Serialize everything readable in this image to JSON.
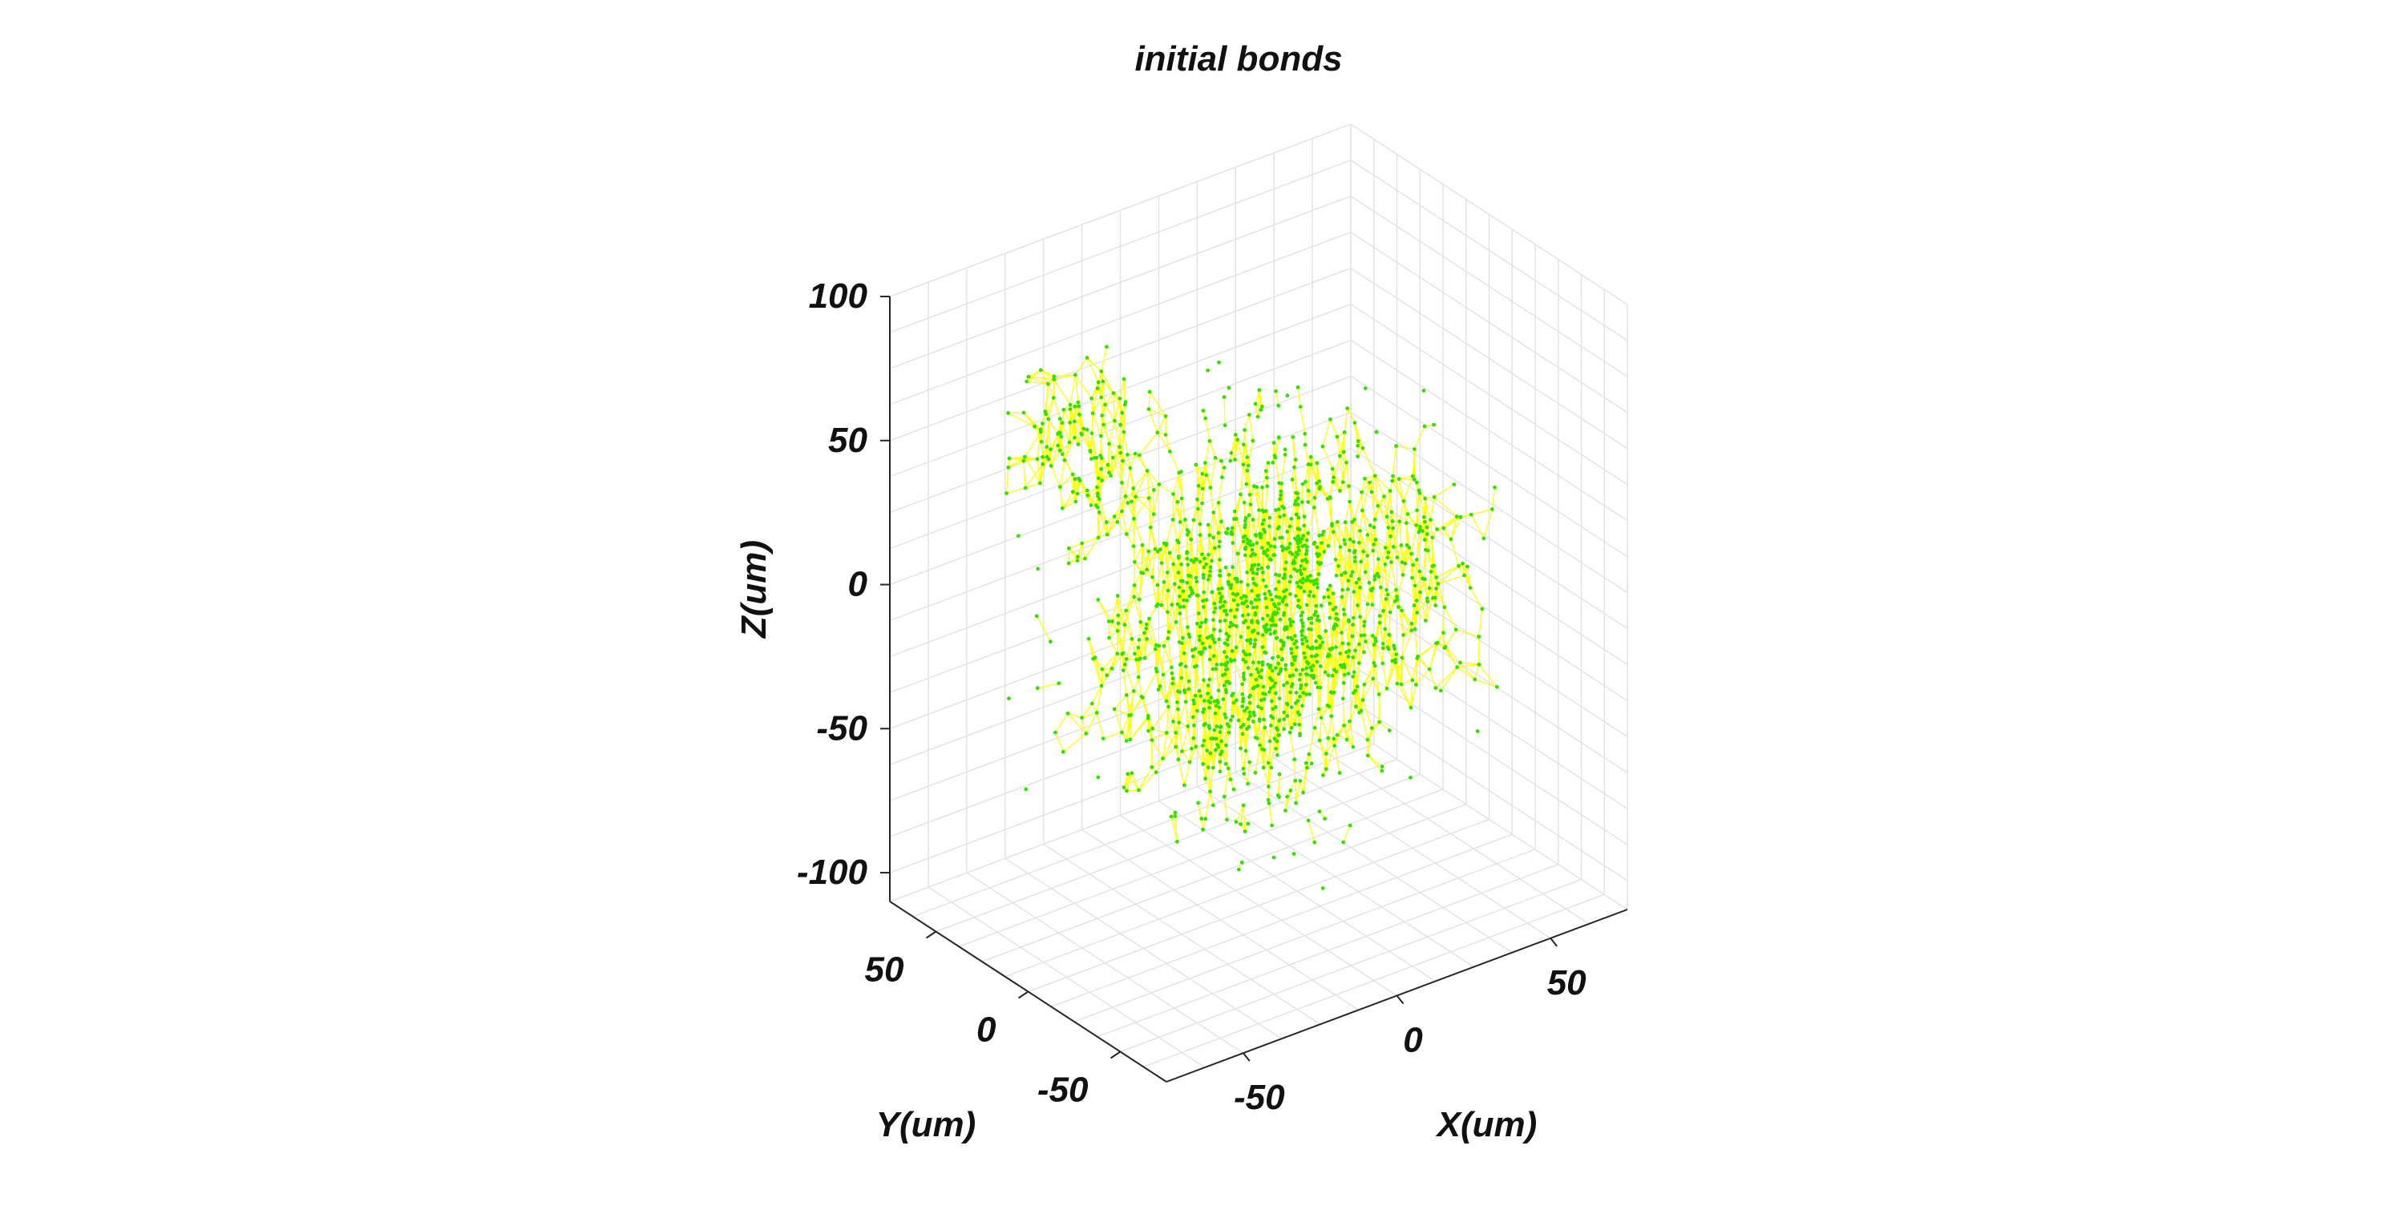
{
  "chart_data": {
    "type": "scatter",
    "subtype": "3d-scatter-with-bonds",
    "title": "initial bonds",
    "xlabel": "X(um)",
    "ylabel": "Y(um)",
    "zlabel": "Z(um)",
    "x_ticks": [
      "-50",
      "0",
      "50"
    ],
    "y_ticks": [
      "-50",
      "0",
      "50"
    ],
    "z_ticks": [
      "-100",
      "-50",
      "0",
      "50",
      "100"
    ],
    "xlim": [
      -75,
      75
    ],
    "ylim": [
      -75,
      75
    ],
    "zlim": [
      -110,
      100
    ],
    "grid": true,
    "view": "3d-perspective",
    "series": [
      {
        "marker_color": "#33e000",
        "bond_color": "#ffff00",
        "cluster_center": [
          0,
          0,
          0
        ],
        "cluster_extent": [
          55,
          45,
          75
        ],
        "approx_points": 1600
      }
    ]
  }
}
